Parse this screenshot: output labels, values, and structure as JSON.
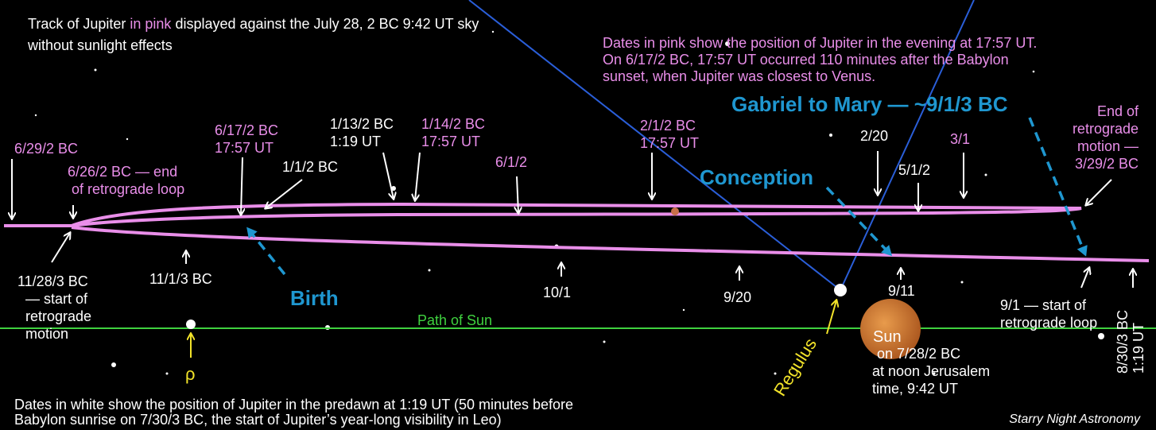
{
  "header": {
    "title_parts": [
      "Track of Jupiter",
      "in pink",
      "displayed against the July 28, 2 BC 9:42 UT sky"
    ],
    "title_line2": "without sunlight effects"
  },
  "pink_note": [
    "Dates in pink show the position of Jupiter in the evening at 17:57 UT.",
    "On 6/17/2 BC, 17:57 UT occurred 110 minutes after the Babylon",
    "sunset, when Jupiter was closest to Venus."
  ],
  "events": {
    "gabriel": "Gabriel to Mary — ~9/1/3 BC",
    "conception": "Conception",
    "birth": "Birth"
  },
  "pink_labels": [
    [
      "6/29/2 BC"
    ],
    [
      "6/26/2 BC — end",
      "of retrograde loop"
    ],
    [
      "6/17/2 BC",
      "17:57 UT"
    ],
    [
      "1/14/2 BC",
      "17:57 UT"
    ],
    [
      "6/1/2"
    ],
    [
      "2/1/2 BC",
      "17:57 UT"
    ],
    [
      "3/1"
    ],
    [
      "End of",
      "retrograde",
      "motion —",
      "3/29/2 BC"
    ]
  ],
  "white_labels": [
    [
      "1/1/2 BC"
    ],
    [
      "1/13/2 BC",
      "1:19 UT"
    ],
    [
      "2/20"
    ],
    [
      "5/1/2"
    ],
    [
      "11/28/3 BC",
      "— start of",
      "retrograde",
      "motion"
    ],
    [
      "11/1/3 BC"
    ],
    [
      "10/1"
    ],
    [
      "9/20"
    ],
    [
      "9/11"
    ],
    [
      "9/1 — start of",
      "retrograde loop"
    ],
    [
      "8/30/3 BC",
      "1:19 UT"
    ]
  ],
  "sun": {
    "name": "Sun",
    "lines": [
      "on 7/28/2 BC",
      "at noon Jerusalem",
      "time, 9:42 UT"
    ]
  },
  "stars": {
    "regulus": "Regulus",
    "rho": "ρ"
  },
  "path_of_sun": "Path of Sun",
  "footer": [
    "Dates in white show the position of Jupiter in the predawn at 1:19 UT (50 minutes before",
    "Babylon sunrise on 7/30/3 BC, the start of Jupiter’s year-long visibility in Leo)"
  ],
  "credit": "Starry Night Astronomy"
}
